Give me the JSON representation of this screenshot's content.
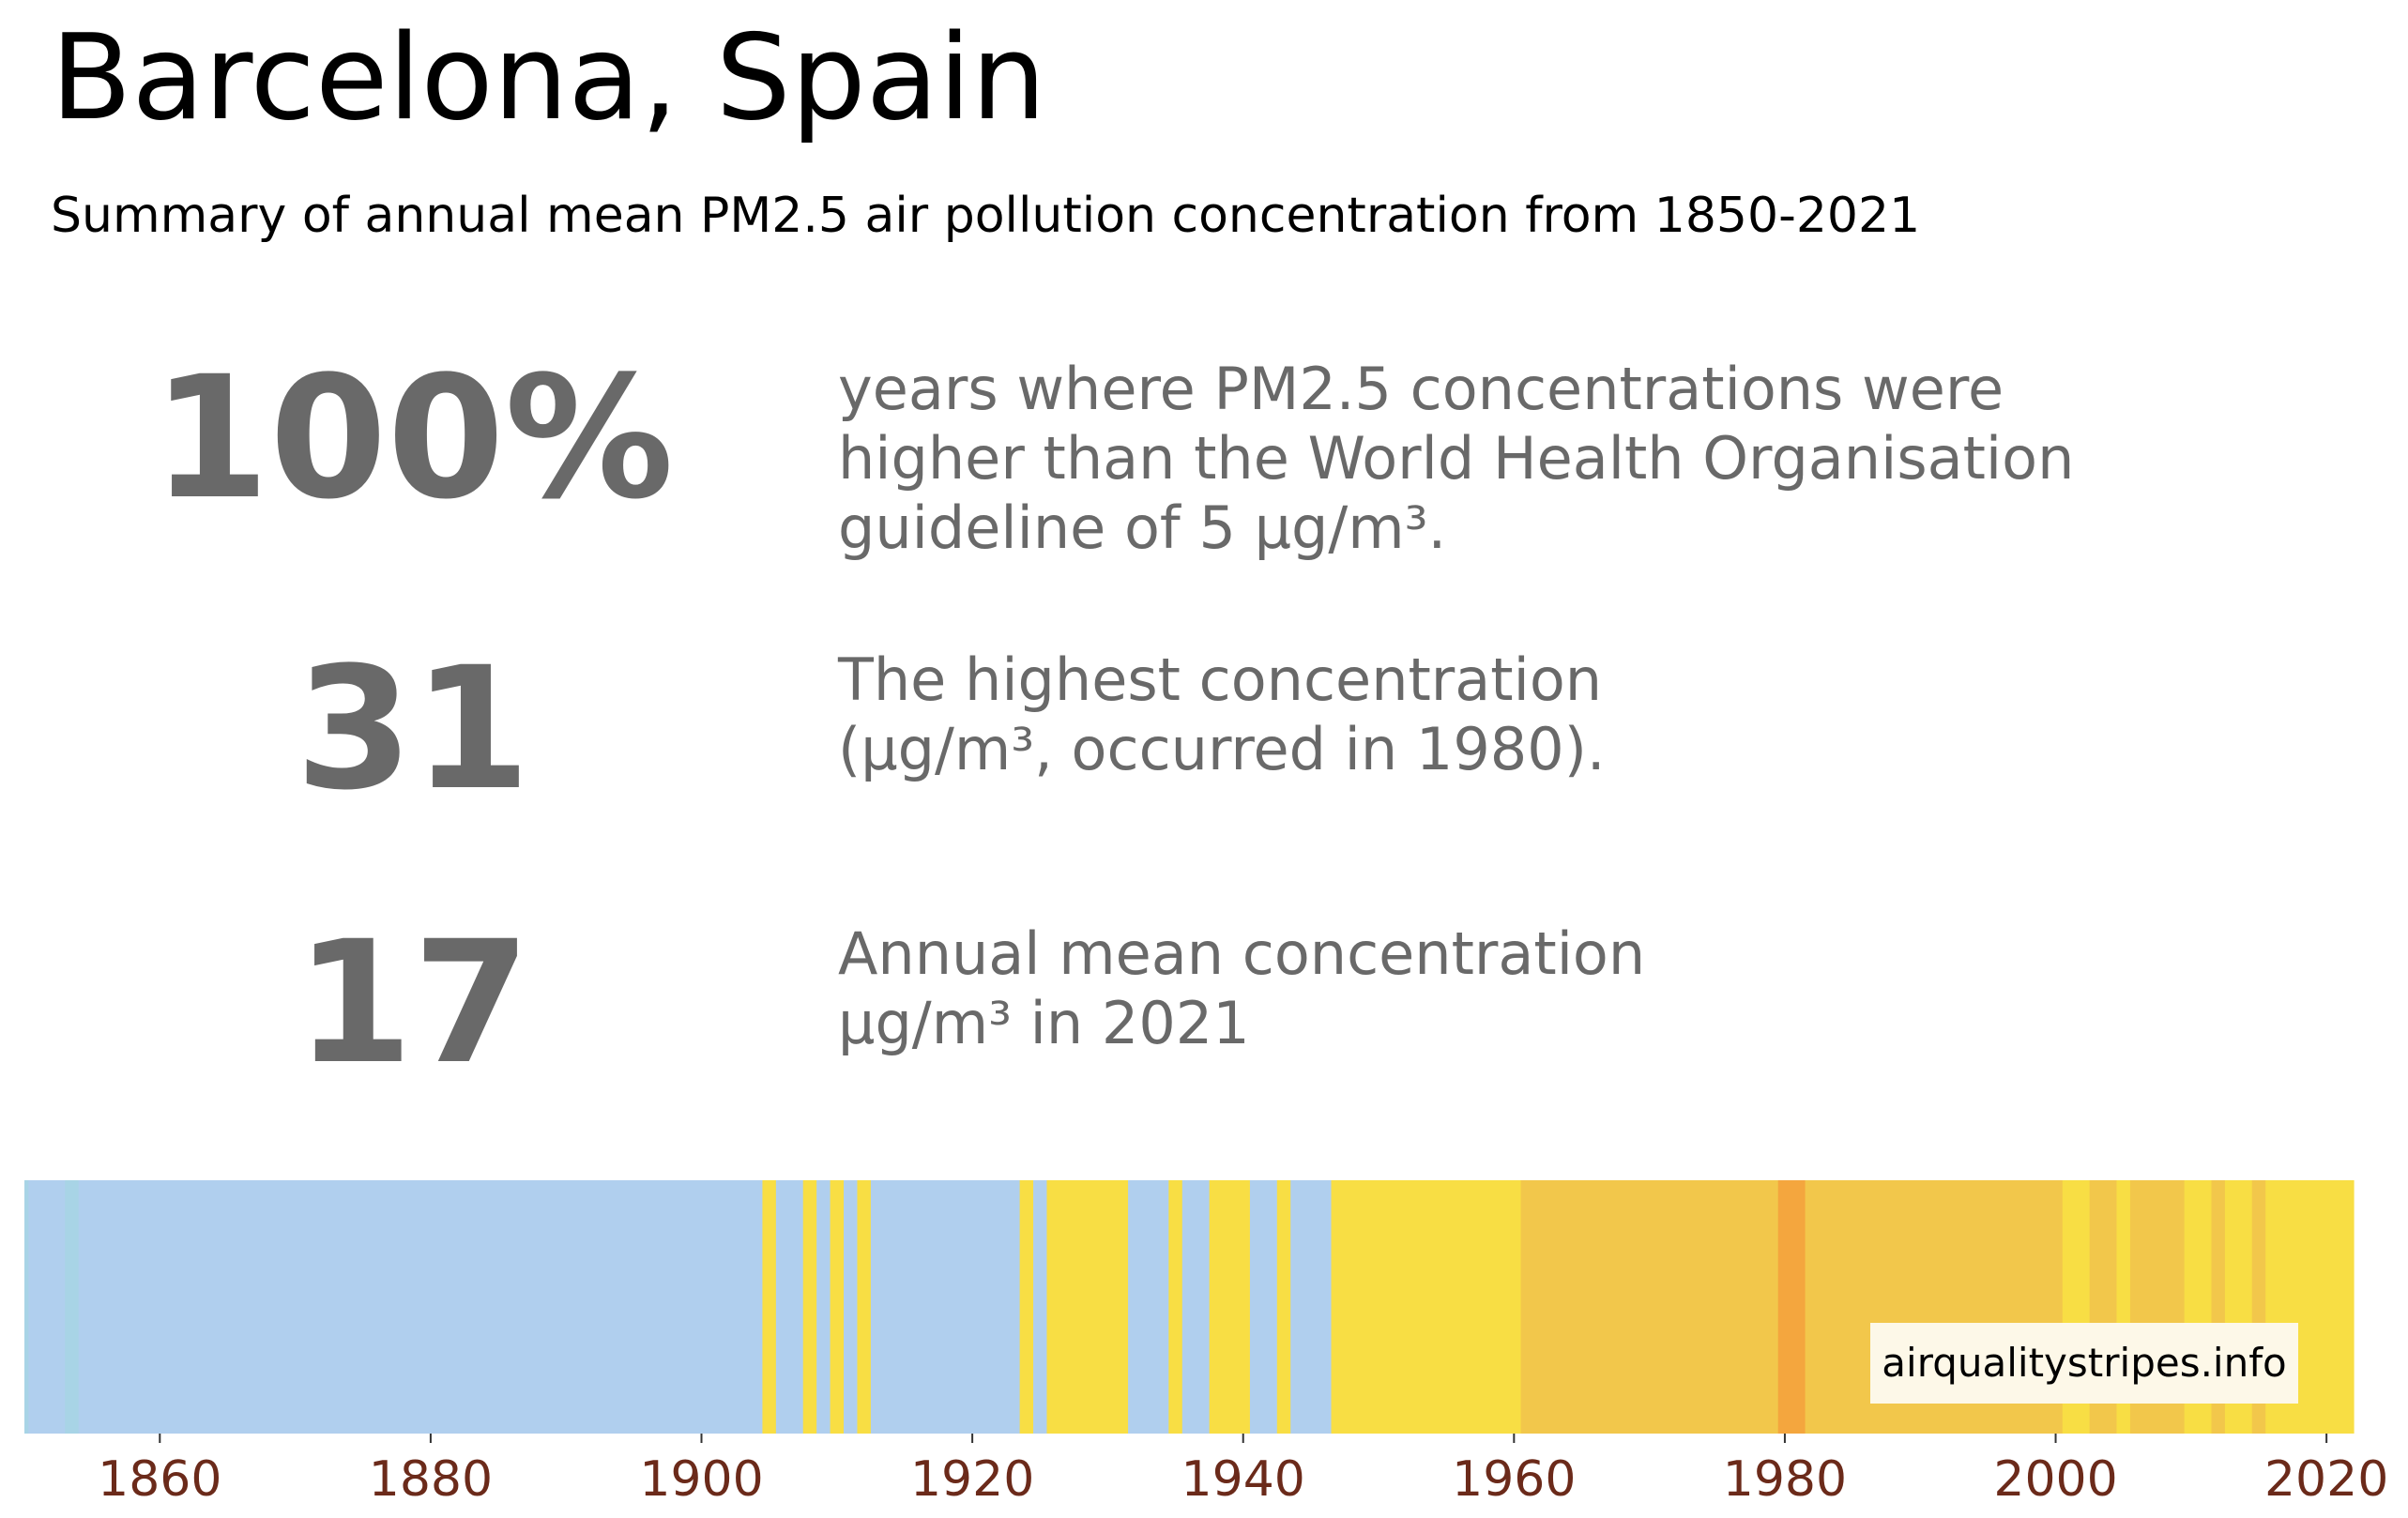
{
  "title": "Barcelona, Spain",
  "subtitle": "Summary of annual mean PM2.5 air pollution concentration from 1850-2021",
  "stats": [
    {
      "value": "100%",
      "lines": [
        "years where PM2.5 concentrations were",
        "higher than the World Health Organisation",
        "guideline of 5 µg/m³."
      ]
    },
    {
      "value": "31",
      "lines": [
        "The highest concentration",
        "(µg/m³, occurred in 1980)."
      ]
    },
    {
      "value": "17",
      "lines": [
        "Annual mean concentration",
        "µg/m³ in 2021"
      ]
    }
  ],
  "credit": "airqualitystripes.info",
  "colors": {
    "light_blue": "#b0cfee",
    "pale_teal": "#a8d4e6",
    "yellow": "#f8de44",
    "gold": "#f2c74b",
    "orange": "#f4a63e",
    "tick_label": "#6b2a1a",
    "stat_text": "#696969"
  },
  "chart_data": {
    "type": "heatmap",
    "xlim": [
      1850,
      2022
    ],
    "x_ticks": [
      1860,
      1880,
      1900,
      1920,
      1940,
      1960,
      1980,
      2000,
      2020
    ],
    "segments": [
      {
        "start": 1850,
        "end": 1850.3,
        "color": "pale_teal"
      },
      {
        "start": 1850.3,
        "end": 1853,
        "color": "light_blue"
      },
      {
        "start": 1853,
        "end": 1854,
        "color": "pale_teal"
      },
      {
        "start": 1854,
        "end": 1904.5,
        "color": "light_blue"
      },
      {
        "start": 1904.5,
        "end": 1905.5,
        "color": "yellow"
      },
      {
        "start": 1905.5,
        "end": 1907.5,
        "color": "light_blue"
      },
      {
        "start": 1907.5,
        "end": 1908.5,
        "color": "yellow"
      },
      {
        "start": 1908.5,
        "end": 1909.5,
        "color": "light_blue"
      },
      {
        "start": 1909.5,
        "end": 1910.5,
        "color": "yellow"
      },
      {
        "start": 1910.5,
        "end": 1911.5,
        "color": "light_blue"
      },
      {
        "start": 1911.5,
        "end": 1912.5,
        "color": "yellow"
      },
      {
        "start": 1912.5,
        "end": 1923.5,
        "color": "light_blue"
      },
      {
        "start": 1923.5,
        "end": 1924.5,
        "color": "yellow"
      },
      {
        "start": 1924.5,
        "end": 1925.5,
        "color": "light_blue"
      },
      {
        "start": 1925.5,
        "end": 1931.5,
        "color": "yellow"
      },
      {
        "start": 1931.5,
        "end": 1934.5,
        "color": "light_blue"
      },
      {
        "start": 1934.5,
        "end": 1935.5,
        "color": "yellow"
      },
      {
        "start": 1935.5,
        "end": 1937.5,
        "color": "light_blue"
      },
      {
        "start": 1937.5,
        "end": 1940.5,
        "color": "yellow"
      },
      {
        "start": 1940.5,
        "end": 1942.5,
        "color": "light_blue"
      },
      {
        "start": 1942.5,
        "end": 1943.5,
        "color": "yellow"
      },
      {
        "start": 1943.5,
        "end": 1946.5,
        "color": "light_blue"
      },
      {
        "start": 1946.5,
        "end": 1960.5,
        "color": "yellow"
      },
      {
        "start": 1960.5,
        "end": 1979.5,
        "color": "gold"
      },
      {
        "start": 1979.5,
        "end": 1981.5,
        "color": "orange"
      },
      {
        "start": 1981.5,
        "end": 2000.5,
        "color": "gold"
      },
      {
        "start": 2000.5,
        "end": 2002.5,
        "color": "yellow"
      },
      {
        "start": 2002.5,
        "end": 2004.5,
        "color": "gold"
      },
      {
        "start": 2004.5,
        "end": 2005.5,
        "color": "yellow"
      },
      {
        "start": 2005.5,
        "end": 2009.5,
        "color": "gold"
      },
      {
        "start": 2009.5,
        "end": 2011.5,
        "color": "yellow"
      },
      {
        "start": 2011.5,
        "end": 2012.5,
        "color": "gold"
      },
      {
        "start": 2012.5,
        "end": 2014.5,
        "color": "yellow"
      },
      {
        "start": 2014.5,
        "end": 2015.5,
        "color": "gold"
      },
      {
        "start": 2015.5,
        "end": 2022,
        "color": "yellow"
      }
    ]
  }
}
